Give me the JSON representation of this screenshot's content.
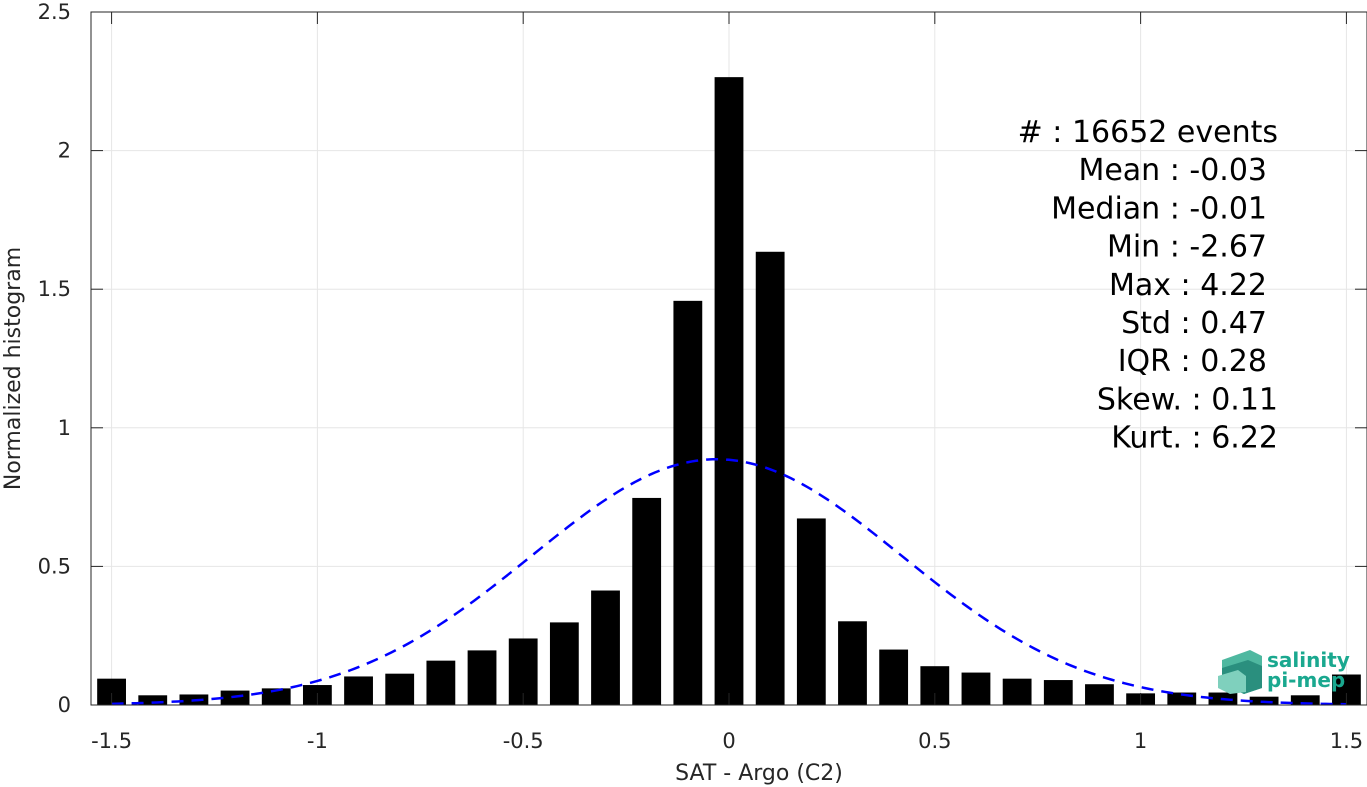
{
  "chart_data": {
    "type": "bar",
    "xlabel": "SAT - Argo (C2)",
    "ylabel": "Normalized histogram",
    "xlim": [
      -1.55,
      1.55
    ],
    "ylim": [
      0,
      2.5
    ],
    "grid": true,
    "x_ticks": [
      -1.5,
      -1,
      -0.5,
      0,
      0.5,
      1,
      1.5
    ],
    "x_tick_labels": [
      "-1.5",
      "-1",
      "-0.5",
      "0",
      "0.5",
      "1",
      "1.5"
    ],
    "y_ticks": [
      0,
      0.5,
      1,
      1.5,
      2,
      2.5
    ],
    "y_tick_labels": [
      "0",
      "0.5",
      "1",
      "1.5",
      "2",
      "2.5"
    ],
    "bin_width": 0.1,
    "bar_color": "#000000",
    "bins": [
      {
        "x": -1.5,
        "y": 0.095
      },
      {
        "x": -1.4,
        "y": 0.035
      },
      {
        "x": -1.3,
        "y": 0.038
      },
      {
        "x": -1.2,
        "y": 0.052
      },
      {
        "x": -1.1,
        "y": 0.06
      },
      {
        "x": -1.0,
        "y": 0.072
      },
      {
        "x": -0.9,
        "y": 0.103
      },
      {
        "x": -0.8,
        "y": 0.113
      },
      {
        "x": -0.7,
        "y": 0.16
      },
      {
        "x": -0.6,
        "y": 0.197
      },
      {
        "x": -0.5,
        "y": 0.24
      },
      {
        "x": -0.4,
        "y": 0.298
      },
      {
        "x": -0.3,
        "y": 0.413
      },
      {
        "x": -0.2,
        "y": 0.747
      },
      {
        "x": -0.1,
        "y": 1.458
      },
      {
        "x": 0.0,
        "y": 2.265
      },
      {
        "x": 0.1,
        "y": 1.635
      },
      {
        "x": 0.2,
        "y": 0.673
      },
      {
        "x": 0.3,
        "y": 0.302
      },
      {
        "x": 0.4,
        "y": 0.2
      },
      {
        "x": 0.5,
        "y": 0.14
      },
      {
        "x": 0.6,
        "y": 0.117
      },
      {
        "x": 0.7,
        "y": 0.095
      },
      {
        "x": 0.8,
        "y": 0.09
      },
      {
        "x": 0.9,
        "y": 0.075
      },
      {
        "x": 1.0,
        "y": 0.042
      },
      {
        "x": 1.1,
        "y": 0.045
      },
      {
        "x": 1.2,
        "y": 0.045
      },
      {
        "x": 1.3,
        "y": 0.03
      },
      {
        "x": 1.4,
        "y": 0.035
      },
      {
        "x": 1.5,
        "y": 0.11
      }
    ],
    "normal_fit": {
      "mean": -0.03,
      "std": 0.45,
      "color": "#0000ff",
      "style": "dashed"
    },
    "stats": [
      {
        "label": "#  : 16652 events"
      },
      {
        "label": "Mean : -0.03"
      },
      {
        "label": "Median : -0.01"
      },
      {
        "label": "Min : -2.67"
      },
      {
        "label": "Max : 4.22"
      },
      {
        "label": "Std : 0.47"
      },
      {
        "label": "IQR : 0.28"
      },
      {
        "label": "Skew. : 0.11"
      },
      {
        "label": "Kurt. : 6.22"
      }
    ]
  },
  "logo": {
    "line1": "salinity",
    "line2": "pi-mep",
    "color": "#1aa88f"
  }
}
